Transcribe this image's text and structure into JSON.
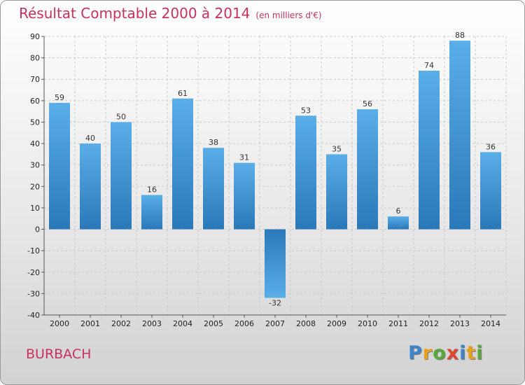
{
  "chart_data": {
    "type": "bar",
    "title": "Résultat Comptable 2000 à 2014",
    "unit": "(en milliers d'€)",
    "categories": [
      "2000",
      "2001",
      "2002",
      "2003",
      "2004",
      "2005",
      "2006",
      "2007",
      "2008",
      "2009",
      "2010",
      "2011",
      "2012",
      "2013",
      "2014"
    ],
    "values": [
      59,
      40,
      50,
      16,
      61,
      38,
      31,
      -32,
      53,
      35,
      56,
      6,
      74,
      88,
      36
    ],
    "ylim": [
      -40,
      90
    ],
    "yticks": [
      -40,
      -30,
      -20,
      -10,
      0,
      10,
      20,
      30,
      40,
      50,
      60,
      70,
      80,
      90
    ],
    "grid": true,
    "colors": {
      "bar_light": "#5aaee8",
      "bar_dark": "#2a78b8",
      "title": "#c8315a"
    }
  },
  "commune": "BURBACH",
  "logo": {
    "letters": [
      "P",
      "r",
      "o",
      "x",
      "i",
      "t",
      "i"
    ],
    "colors": [
      "#3f86c9",
      "#e8a21a",
      "#5aa83c",
      "#e0452d",
      "#3f86c9",
      "#e8a21a",
      "#5aa83c"
    ]
  }
}
